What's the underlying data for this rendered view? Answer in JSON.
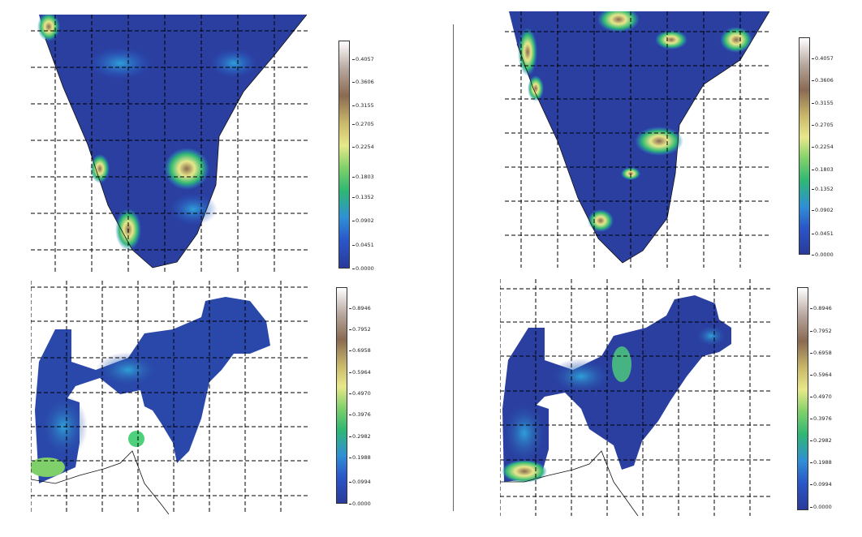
{
  "panels": [
    {
      "id": "top-left",
      "colorbar": {
        "ticks": [
          "0.4057",
          "0.3606",
          "0.3155",
          "0.2705",
          "0.2254",
          "0.1803",
          "0.1352",
          "0.0902",
          "0.0451",
          "0.0000"
        ]
      }
    },
    {
      "id": "top-right",
      "colorbar": {
        "ticks": [
          "0.4057",
          "0.3606",
          "0.3155",
          "0.2705",
          "0.2254",
          "0.1803",
          "0.1352",
          "0.0902",
          "0.0451",
          "0.0000"
        ]
      }
    },
    {
      "id": "bottom-left",
      "colorbar": {
        "ticks": [
          "0.8946",
          "0.7952",
          "0.6958",
          "0.5964",
          "0.4970",
          "0.3976",
          "0.2982",
          "0.1988",
          "0.0994",
          "0.0000"
        ]
      }
    },
    {
      "id": "bottom-right",
      "colorbar": {
        "ticks": [
          "0.8946",
          "0.7952",
          "0.6958",
          "0.5964",
          "0.4970",
          "0.3976",
          "0.2982",
          "0.1988",
          "0.0994",
          "0.0000"
        ]
      }
    }
  ],
  "colors": {
    "low": "#2a3a9a",
    "mid": "#2fb873",
    "high": "#ffffff",
    "grid": "#000000"
  }
}
